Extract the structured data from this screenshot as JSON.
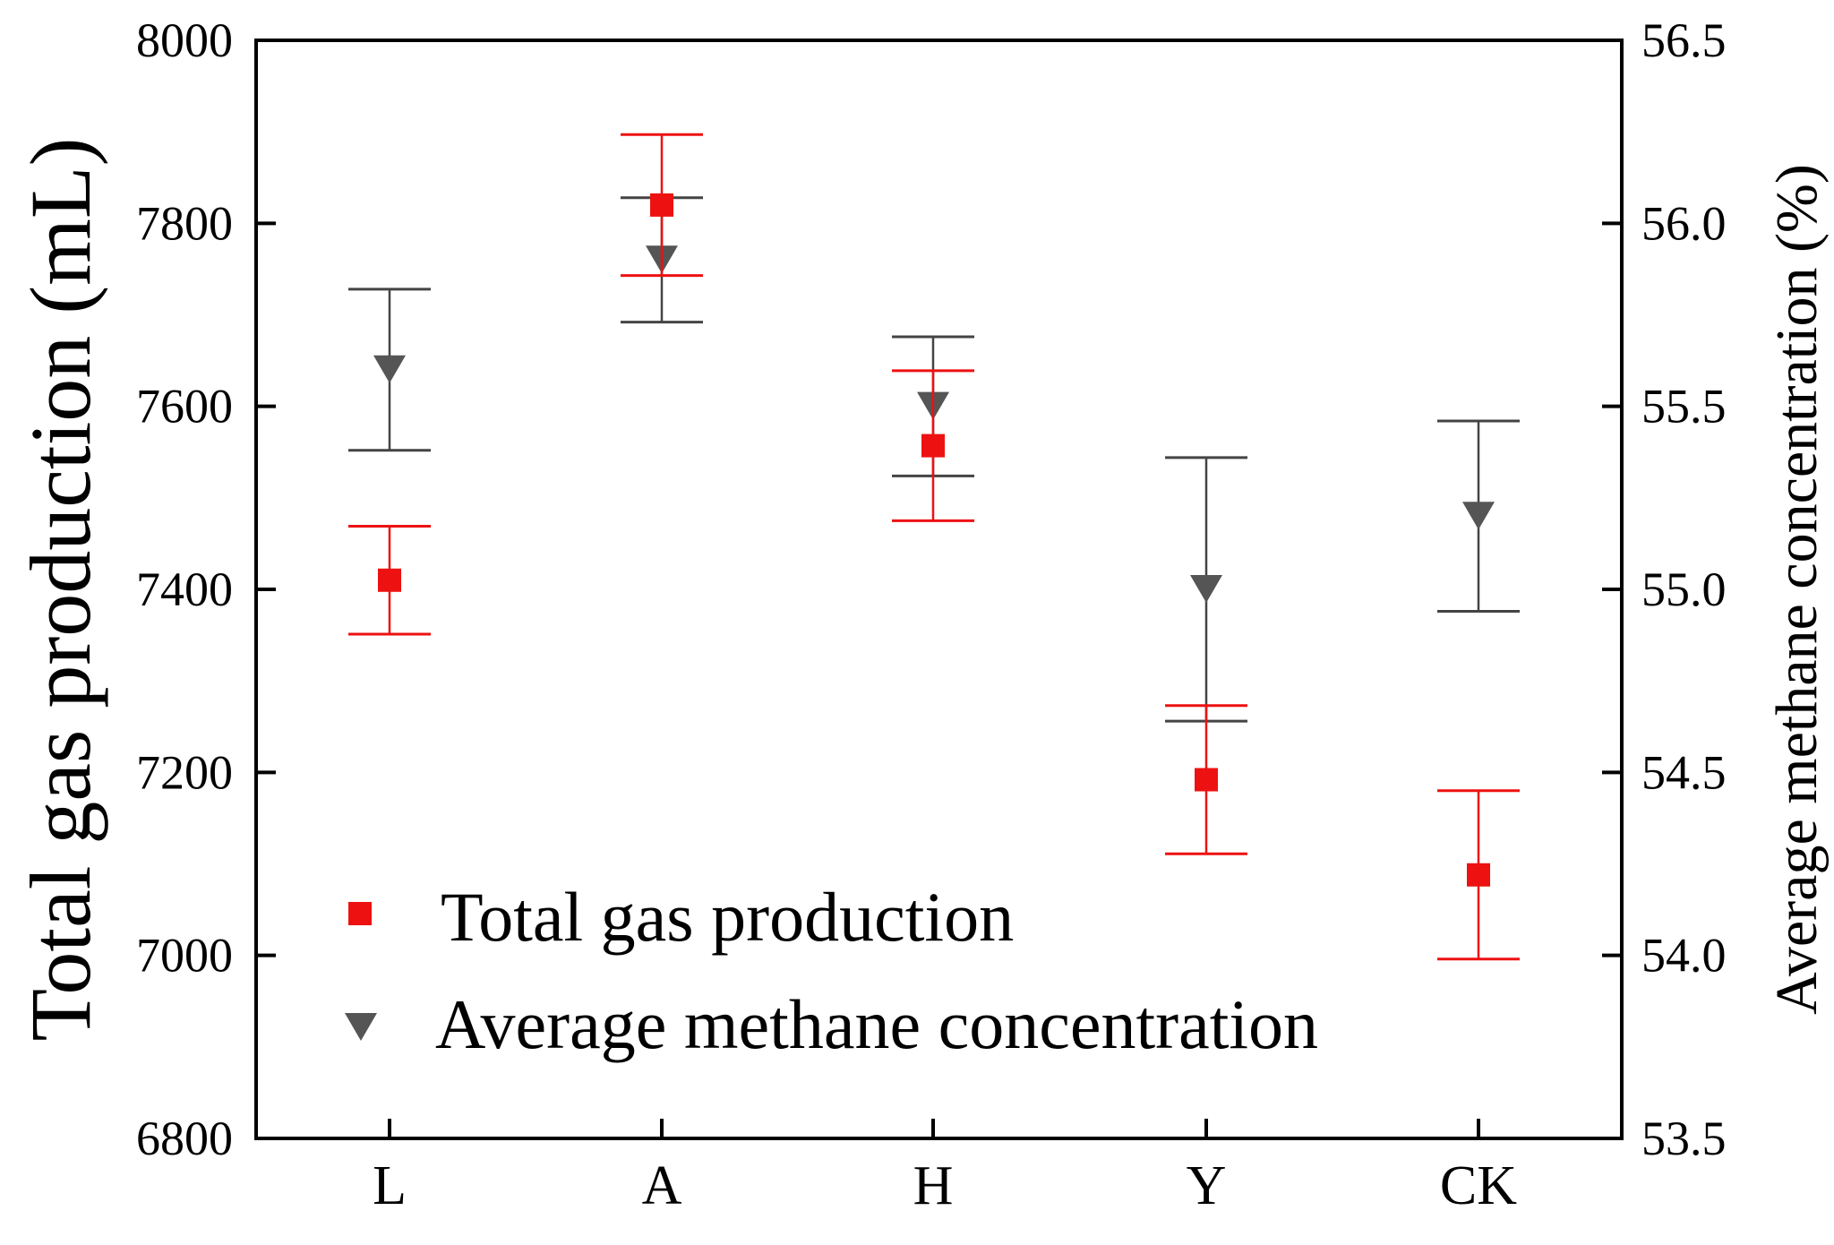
{
  "chart_data": {
    "type": "scatter",
    "title": "",
    "xlabel": "",
    "ylabel": "Total gas production (mL)",
    "ylabel_right": "Average methane concentration (%)",
    "categories": [
      "L",
      "A",
      "H",
      "Y",
      "CK"
    ],
    "ylim": [
      6800,
      8000
    ],
    "ylim_right": [
      53.5,
      56.5
    ],
    "yticks": [
      "6800",
      "7000",
      "7200",
      "7400",
      "7600",
      "7800",
      "8000"
    ],
    "yticks_right": [
      "53.5",
      "54.0",
      "54.5",
      "55.0",
      "55.5",
      "56.0",
      "56.5"
    ],
    "grid": false,
    "legend_position": "bottom-left",
    "series": [
      {
        "name": "Total gas production",
        "axis": "left",
        "marker": "square",
        "color": "#ee1111",
        "values": [
          7410,
          7820,
          7557,
          7192,
          7088
        ],
        "errors": [
          59,
          77,
          82,
          81,
          92
        ]
      },
      {
        "name": "Average methane concentration",
        "axis": "right",
        "marker": "triangle-down",
        "color": "#555555",
        "values": [
          55.6,
          55.9,
          55.5,
          55.0,
          55.2
        ],
        "errors": [
          0.22,
          0.17,
          0.19,
          0.36,
          0.26
        ]
      }
    ]
  }
}
